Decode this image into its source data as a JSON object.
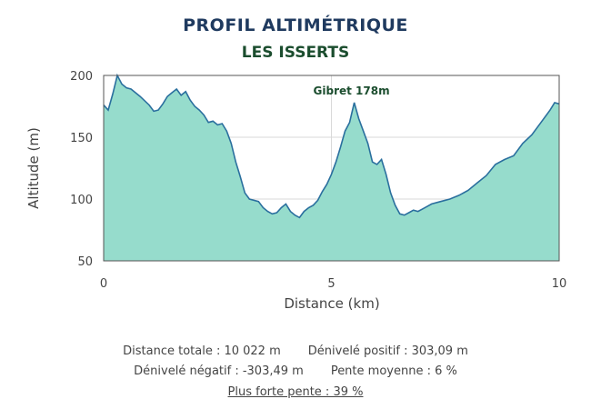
{
  "header": {
    "title": "PROFIL ALTIMÉTRIQUE",
    "subtitle": "LES ISSERTS"
  },
  "chart_data": {
    "type": "area",
    "title": "PROFIL ALTIMÉTRIQUE",
    "subtitle": "LES ISSERTS",
    "xlabel": "Distance (km)",
    "ylabel": "Altitude (m)",
    "xlim": [
      0,
      10
    ],
    "ylim": [
      50,
      200
    ],
    "xticks": [
      "0",
      "5",
      "10"
    ],
    "xtick_values": [
      0,
      5,
      10
    ],
    "yticks": [
      "50",
      "100",
      "150",
      "200"
    ],
    "ytick_values": [
      50,
      100,
      150,
      200
    ],
    "grid": true,
    "fill_color": "#96dccc",
    "line_color": "#2a6f9e",
    "annotation": {
      "text": "Gibret 178m",
      "x": 5.6,
      "y": 178
    },
    "series": [
      {
        "x": [
          0,
          0.1,
          0.2,
          0.3,
          0.4,
          0.5,
          0.6,
          0.8,
          1.0,
          1.1,
          1.2,
          1.3,
          1.4,
          1.5,
          1.6,
          1.7,
          1.8,
          1.9,
          2.0,
          2.1,
          2.2,
          2.3,
          2.4,
          2.5,
          2.6,
          2.7,
          2.8,
          2.9,
          3.0,
          3.1,
          3.2,
          3.4,
          3.5,
          3.6,
          3.7,
          3.8,
          3.9,
          4.0,
          4.1,
          4.2,
          4.3,
          4.4,
          4.5,
          4.6,
          4.7,
          4.8,
          4.9,
          5.0,
          5.1,
          5.2,
          5.3,
          5.4,
          5.5,
          5.6,
          5.7,
          5.8,
          5.9,
          6.0,
          6.1,
          6.2,
          6.3,
          6.4,
          6.5,
          6.6,
          6.7,
          6.8,
          6.9,
          7.0,
          7.1,
          7.2,
          7.4,
          7.6,
          7.8,
          8.0,
          8.2,
          8.4,
          8.6,
          8.8,
          9.0,
          9.2,
          9.4,
          9.6,
          9.8,
          9.9,
          10.0
        ],
        "values": [
          176,
          172,
          185,
          200,
          193,
          190,
          189,
          183,
          176,
          171,
          172,
          177,
          183,
          186,
          189,
          184,
          187,
          180,
          175,
          172,
          168,
          162,
          163,
          160,
          161,
          155,
          145,
          130,
          118,
          105,
          100,
          98,
          93,
          90,
          88,
          89,
          93,
          96,
          90,
          87,
          85,
          90,
          93,
          95,
          99,
          106,
          112,
          120,
          130,
          142,
          155,
          162,
          178,
          165,
          155,
          145,
          130,
          128,
          132,
          120,
          105,
          95,
          88,
          87,
          89,
          91,
          90,
          92,
          94,
          96,
          98,
          100,
          103,
          107,
          113,
          119,
          128,
          132,
          135,
          145,
          152,
          162,
          172,
          178,
          177
        ]
      }
    ]
  },
  "stats": {
    "distance_totale": "Distance totale : 10 022 m",
    "denivele_positif": "Dénivelé positif : 303,09 m",
    "denivele_negatif": "Dénivelé négatif : -303,49 m",
    "pente_moyenne": "Pente moyenne : 6 %",
    "plus_forte_pente": "Plus forte pente : 39 %"
  }
}
